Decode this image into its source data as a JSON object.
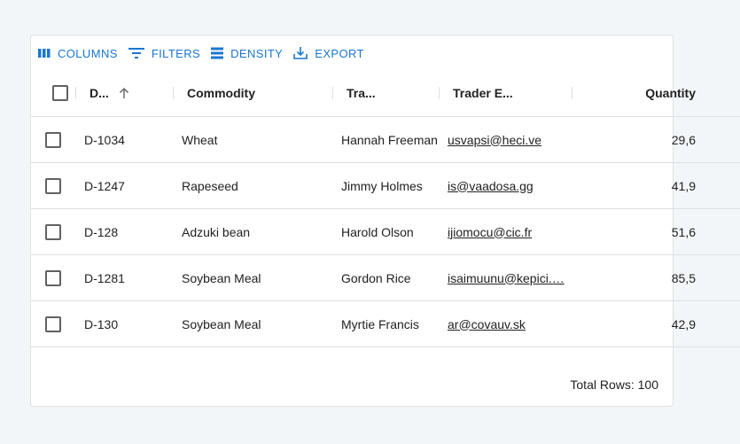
{
  "toolbar": {
    "columns": "COLUMNS",
    "filters": "FILTERS",
    "density": "DENSITY",
    "export": "EXPORT"
  },
  "columns": [
    "D...",
    "Commodity",
    "Tra...",
    "Trader E...",
    "Quantity"
  ],
  "sort": {
    "column": "D...",
    "direction": "ascending"
  },
  "rows": [
    {
      "desk": "D-1034",
      "commodity": "Wheat",
      "trader": "Hannah Freeman",
      "email": "usvapsi@heci.ve",
      "quantity": "29,6"
    },
    {
      "desk": "D-1247",
      "commodity": "Rapeseed",
      "trader": "Jimmy Holmes",
      "email": "is@vaadosa.gg",
      "quantity": "41,9"
    },
    {
      "desk": "D-128",
      "commodity": "Adzuki bean",
      "trader": "Harold Olson",
      "email": "ijiomocu@cic.fr",
      "quantity": "51,6"
    },
    {
      "desk": "D-1281",
      "commodity": "Soybean Meal",
      "trader": "Gordon Rice",
      "email": "isaimuunu@kepici.…",
      "quantity": "85,5"
    },
    {
      "desk": "D-130",
      "commodity": "Soybean Meal",
      "trader": "Myrtie Francis",
      "email": "ar@covauv.sk",
      "quantity": "42,9"
    }
  ],
  "footer": {
    "total": "Total Rows: 100"
  },
  "colors": {
    "accent": "#1976d2",
    "background": "#f3f6f9"
  }
}
